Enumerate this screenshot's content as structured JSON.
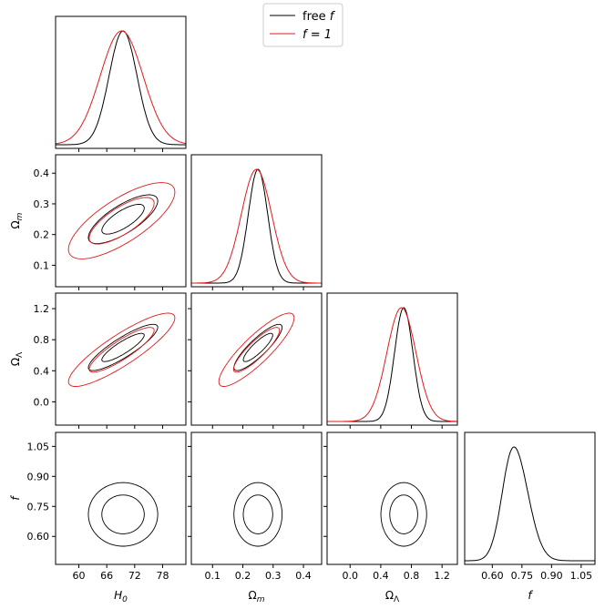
{
  "chart_data": {
    "type": "corner-plot",
    "parameters": [
      {
        "key": "H0",
        "base": "H",
        "sub": "0",
        "ticks": [
          60,
          66,
          72,
          78
        ],
        "tick_labels": [
          "60",
          "66",
          "72",
          "78"
        ],
        "range": [
          55,
          83
        ]
      },
      {
        "key": "Om",
        "base": "Ω",
        "sub": "m",
        "ticks": [
          0.1,
          0.2,
          0.3,
          0.4
        ],
        "tick_labels": [
          "0.1",
          "0.2",
          "0.3",
          "0.4"
        ],
        "range": [
          0.03,
          0.46
        ]
      },
      {
        "key": "OL",
        "base": "Ω",
        "sub": "Λ",
        "ticks": [
          0.0,
          0.4,
          0.8,
          1.2
        ],
        "tick_labels": [
          "0.0",
          "0.4",
          "0.8",
          "1.2"
        ],
        "range": [
          -0.3,
          1.4
        ]
      },
      {
        "key": "f",
        "base": "f",
        "sub": "",
        "ticks": [
          0.6,
          0.75,
          0.9,
          1.05
        ],
        "tick_labels": [
          "0.60",
          "0.75",
          "0.90",
          "1.05"
        ],
        "range": [
          0.46,
          1.12
        ]
      }
    ],
    "series": [
      {
        "name": "free f",
        "label_text": "free ",
        "label_italic": "f",
        "color": "#000000",
        "mean": [
          69.5,
          0.25,
          0.7,
          0.71
        ],
        "sigma": [
          3.0,
          0.032,
          0.12,
          0.064
        ],
        "corr": [
          [
            1,
            0.75,
            0.87,
            0
          ],
          [
            0.75,
            1,
            0.87,
            0
          ],
          [
            0.87,
            0.87,
            1,
            0
          ],
          [
            0,
            0,
            0,
            1
          ]
        ],
        "skew_f": 0.3
      },
      {
        "name": "f = 1",
        "label_text": "f = 1",
        "label_italic": "",
        "color": "#e31a1c",
        "mean": [
          69.2,
          0.245,
          0.67,
          null
        ],
        "sigma": [
          4.6,
          0.05,
          0.19,
          null
        ],
        "corr": [
          [
            1,
            0.75,
            0.87,
            0
          ],
          [
            0.75,
            1,
            0.87,
            0
          ],
          [
            0.87,
            0.87,
            1,
            0
          ],
          [
            0,
            0,
            0,
            1
          ]
        ]
      }
    ],
    "contour_levels": [
      "68%",
      "95%"
    ],
    "legend_position": "top-center"
  },
  "legend": {
    "free_label": "free ",
    "free_italic": "f",
    "fixed_label": "f = 1"
  }
}
